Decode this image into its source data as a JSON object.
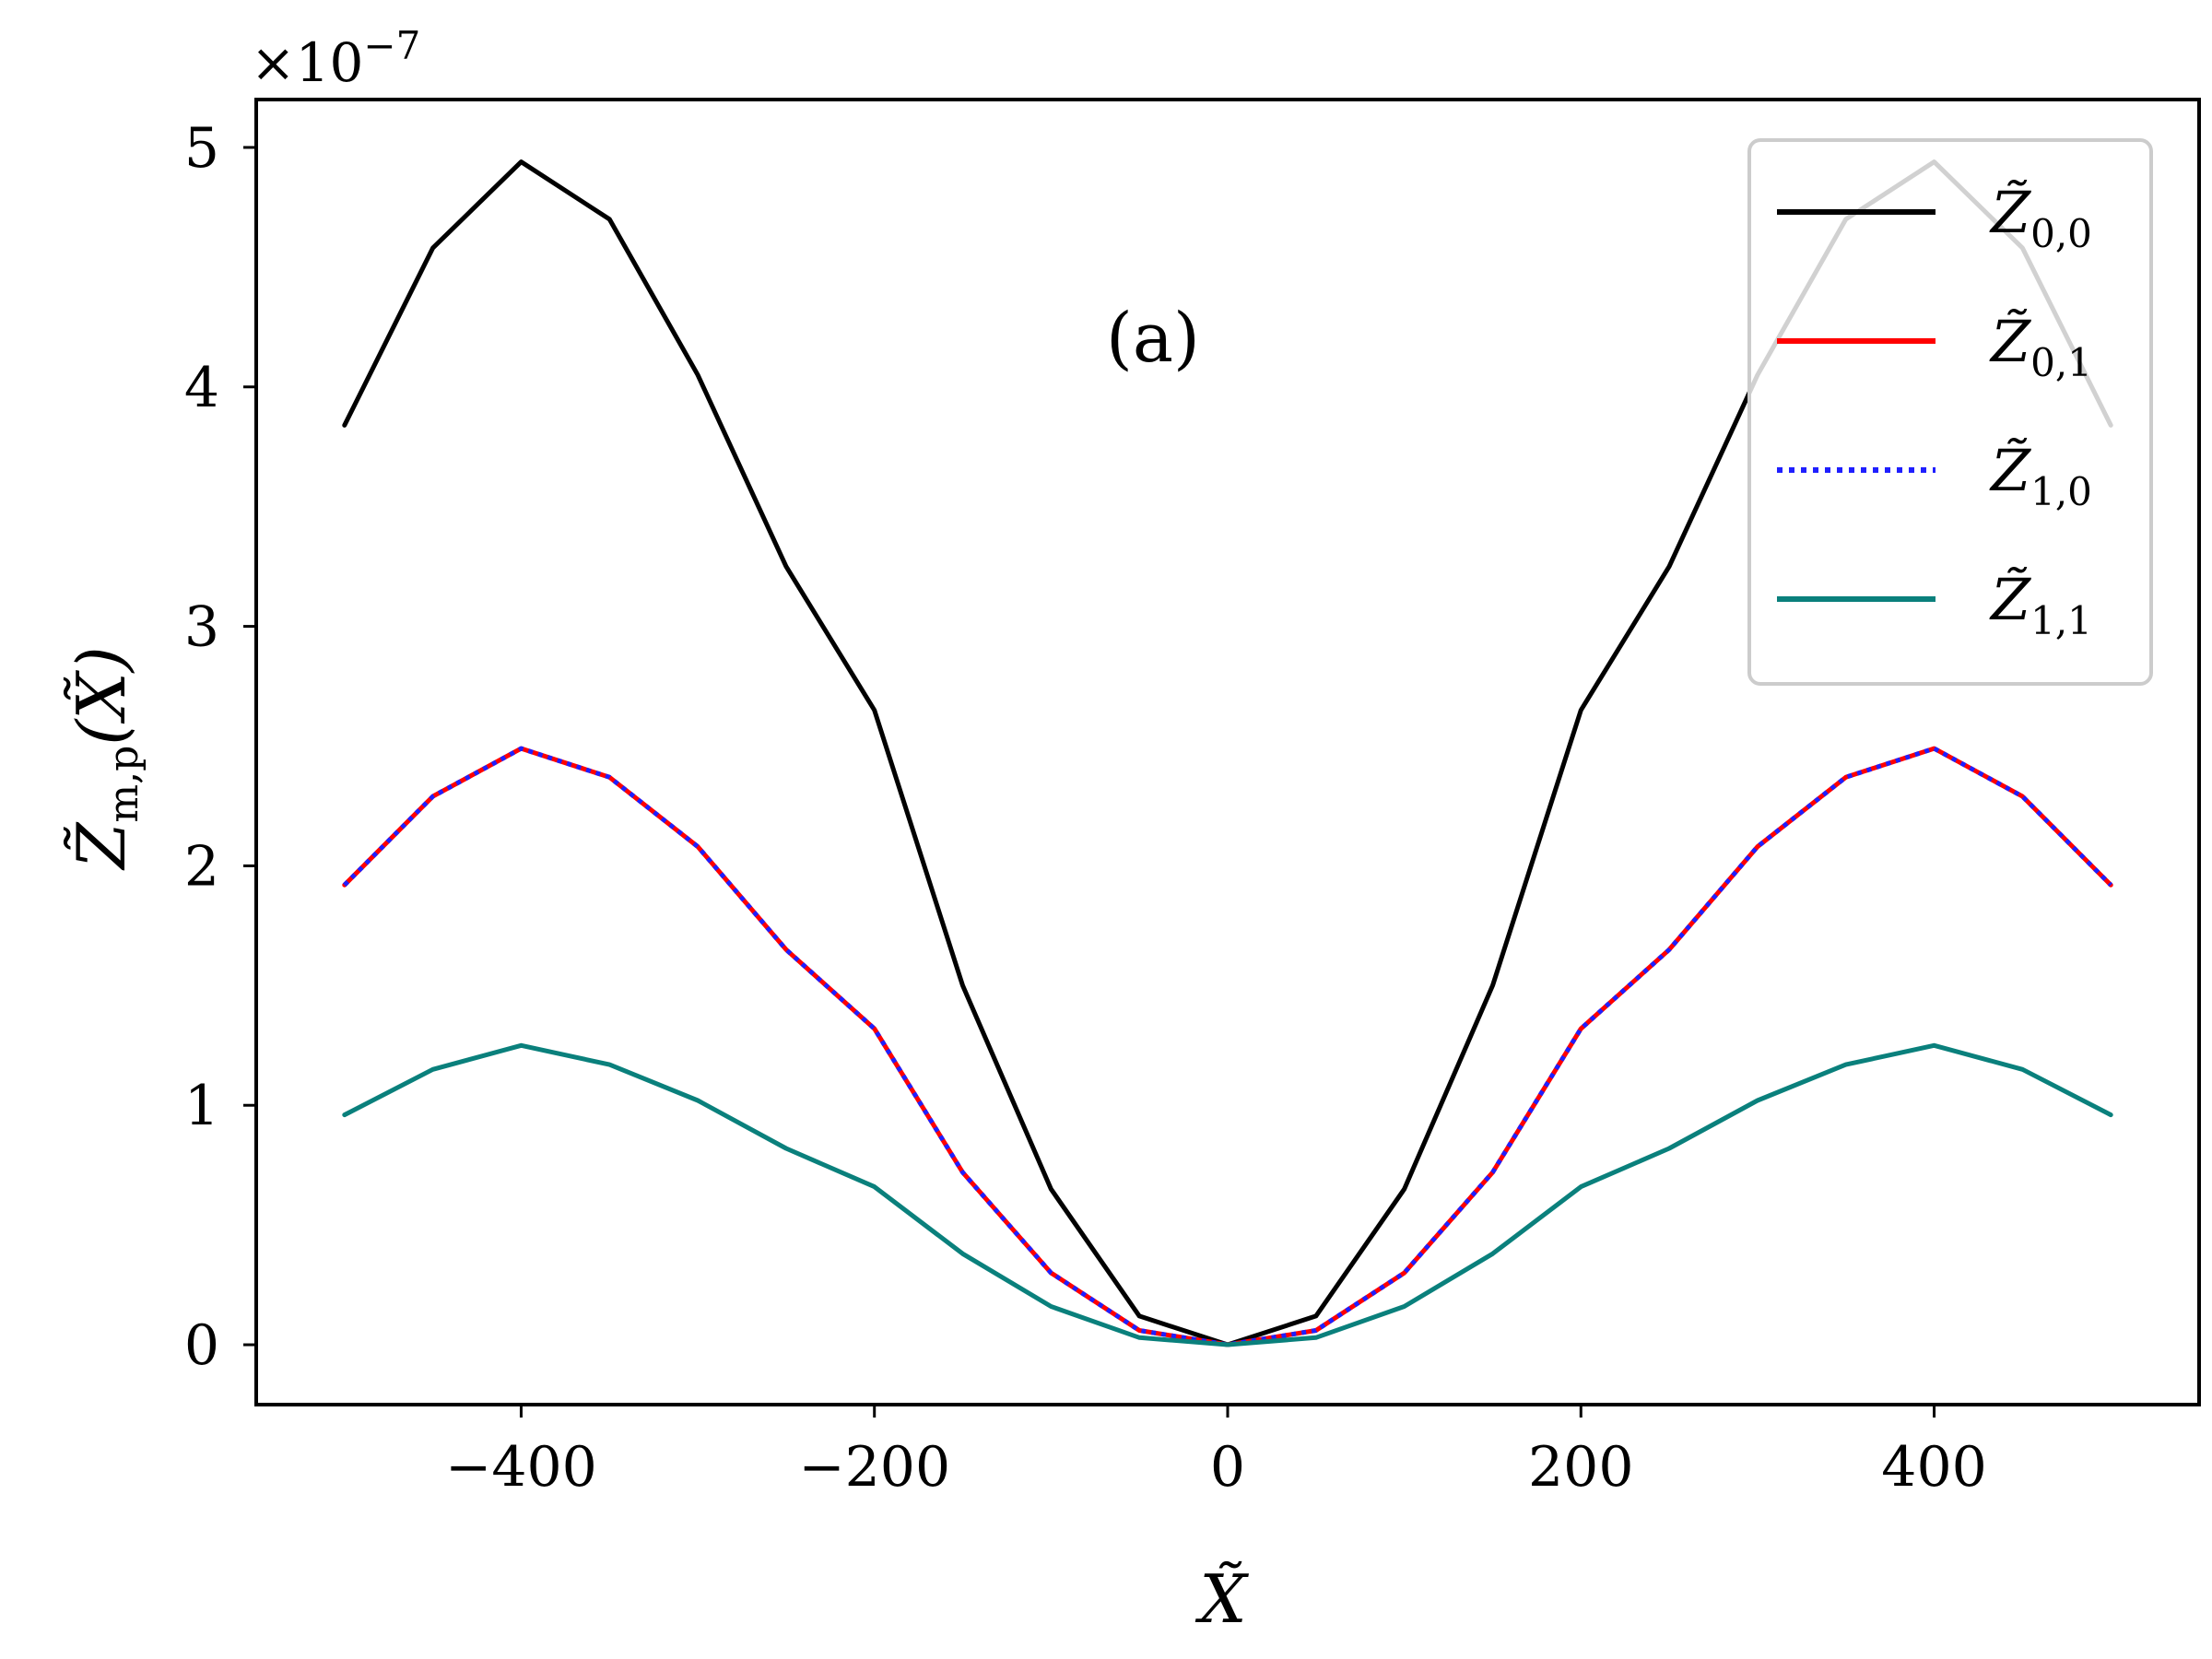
{
  "chart_data": {
    "type": "line",
    "title": "",
    "annotation": "(a)",
    "xlabel": {
      "base": "X̃",
      "sub": ""
    },
    "ylabel": {
      "base": "Z̃",
      "sub": "m,p",
      "arg": "(X̃)"
    },
    "y_multiplier": {
      "prefix": "×10",
      "exponent": "−7"
    },
    "xlim": [
      -550,
      550
    ],
    "ylim": [
      -0.25,
      5.2
    ],
    "x_ticks": [
      -400,
      -200,
      0,
      200,
      400
    ],
    "x_tick_labels": [
      "−400",
      "−200",
      "0",
      "200",
      "400"
    ],
    "y_ticks": [
      0,
      1,
      2,
      3,
      4,
      5
    ],
    "y_tick_labels": [
      "0",
      "1",
      "2",
      "3",
      "4",
      "5"
    ],
    "grid": false,
    "legend_position": "top-right",
    "x": [
      -500,
      -450,
      -400,
      -350,
      -300,
      -250,
      -200,
      -150,
      -100,
      -50,
      0,
      50,
      100,
      150,
      200,
      250,
      300,
      350,
      400,
      450,
      500
    ],
    "series": [
      {
        "name": "Z̃",
        "sub": "0,0",
        "color": "#000000",
        "style": "solid",
        "values": [
          3.84,
          4.58,
          4.94,
          4.7,
          4.05,
          3.25,
          2.65,
          1.5,
          0.65,
          0.12,
          0.0,
          0.12,
          0.65,
          1.5,
          2.65,
          3.25,
          4.05,
          4.7,
          4.94,
          4.58,
          3.84
        ]
      },
      {
        "name": "Z̃",
        "sub": "0,1",
        "color": "#ff0000",
        "style": "solid",
        "values": [
          1.92,
          2.29,
          2.49,
          2.37,
          2.08,
          1.65,
          1.32,
          0.72,
          0.3,
          0.06,
          0.0,
          0.06,
          0.3,
          0.72,
          1.32,
          1.65,
          2.08,
          2.37,
          2.49,
          2.29,
          1.92
        ]
      },
      {
        "name": "Z̃",
        "sub": "1,0",
        "color": "#1f1fff",
        "style": "dotted",
        "values": [
          1.92,
          2.29,
          2.49,
          2.37,
          2.08,
          1.65,
          1.32,
          0.72,
          0.3,
          0.06,
          0.0,
          0.06,
          0.3,
          0.72,
          1.32,
          1.65,
          2.08,
          2.37,
          2.49,
          2.29,
          1.92
        ]
      },
      {
        "name": "Z̃",
        "sub": "1,1",
        "color": "#0a807c",
        "style": "solid",
        "values": [
          0.96,
          1.15,
          1.25,
          1.17,
          1.02,
          0.82,
          0.66,
          0.38,
          0.16,
          0.03,
          0.0,
          0.03,
          0.16,
          0.38,
          0.66,
          0.82,
          1.02,
          1.17,
          1.25,
          1.15,
          0.96
        ]
      }
    ]
  }
}
